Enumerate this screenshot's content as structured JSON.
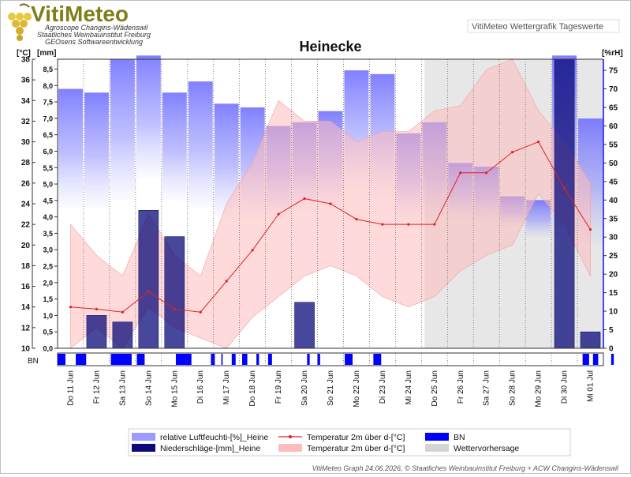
{
  "header": {
    "logo_title": "VitiMeteo",
    "logo_lines": [
      "Agroscope Changins-Wädenswil",
      "Staatliches Weinbauinstitut Freiburg",
      "GEOsens Softwareentwicklung"
    ],
    "top_right_label": "VitiMeteo Wettergrafik Tageswerte"
  },
  "footer": {
    "credit": "VitiMeteo Graph 24.06.2026, © Staatliches Weinbauinstitut Freiburg + ACW Changins-Wädenswil"
  },
  "colors": {
    "humidity": "#7070ff",
    "rain": "#0a0a7a",
    "temp_line": "#e02020",
    "temp_band": "#ffbcbc",
    "bn": "#0000ff",
    "forecast": "#d4d4d4"
  },
  "chart_data": {
    "type": "bar",
    "title": "Heinecke",
    "categories": [
      "Do 11 Jun",
      "Fr 12 Jun",
      "Sa 13 Jun",
      "So 14 Jun",
      "Mo 15 Jun",
      "Di 16 Jun",
      "Mi 17 Jun",
      "Do 18 Jun",
      "Fr 19 Jun",
      "Sa 20 Jun",
      "So 21 Jun",
      "Mo 22 Jun",
      "Di 23 Jun",
      "Mi 24 Jun",
      "Do 25 Jun",
      "Fr 26 Jun",
      "Sa 27 Jun",
      "So 28 Jun",
      "Mo 29 Jun",
      "Di 30 Jun",
      "Mi 01 Jul"
    ],
    "y_left_temp": {
      "label": "[°C]",
      "ticks": [
        10,
        12,
        14,
        16,
        18,
        20,
        22,
        24,
        26,
        28,
        30,
        32,
        34,
        36,
        38
      ],
      "range": [
        10,
        38
      ]
    },
    "y_left_rain": {
      "label": "[mm]",
      "ticks": [
        "0,0",
        "0,5",
        "1,0",
        "1,5",
        "2,0",
        "2,5",
        "3,0",
        "3,5",
        "4,0",
        "4,5",
        "5,0",
        "5,5",
        "6,0",
        "6,5",
        "7,0",
        "7,5",
        "8,0",
        "8,5"
      ],
      "range": [
        0,
        8.8
      ]
    },
    "y_right": {
      "label": "[%rH]",
      "ticks": [
        0,
        5,
        10,
        15,
        20,
        25,
        30,
        35,
        40,
        45,
        50,
        55,
        60,
        65,
        70,
        75
      ],
      "range": [
        0,
        78
      ]
    },
    "humidity_max": [
      70,
      69,
      78,
      79,
      69,
      72,
      66,
      65,
      60,
      61,
      64,
      75,
      74,
      58,
      61,
      50,
      49,
      41,
      40,
      79,
      62
    ],
    "humidity_min": [
      38,
      38,
      40,
      46,
      40,
      38,
      35,
      35,
      35,
      37,
      38,
      43,
      41,
      35,
      35,
      35,
      34,
      33,
      30,
      30,
      28
    ],
    "temp_max": [
      22.0,
      19.0,
      17.0,
      23.0,
      19.0,
      17.0,
      24.0,
      28.0,
      34.0,
      32.0,
      32.0,
      30.0,
      31.0,
      31.0,
      33.0,
      33.5,
      37.0,
      38.0,
      33.0,
      30.0,
      26.0
    ],
    "temp_mean": [
      14.0,
      13.8,
      13.5,
      15.5,
      13.8,
      13.5,
      16.5,
      19.5,
      23.0,
      24.5,
      24.0,
      22.5,
      22.0,
      22.0,
      22.0,
      27.0,
      27.0,
      29.0,
      30.0,
      25.5,
      21.5
    ],
    "temp_min": [
      10.0,
      12.0,
      10.0,
      14.0,
      12.0,
      11.0,
      10.0,
      13.0,
      15.0,
      17.0,
      18.0,
      17.0,
      15.0,
      14.0,
      15.0,
      17.5,
      19.0,
      20.0,
      25.0,
      22.0,
      17.0
    ],
    "rain_mm": [
      0.0,
      1.0,
      0.8,
      4.2,
      3.4,
      0.0,
      0.0,
      0.0,
      0.0,
      1.4,
      0.0,
      0.0,
      0.0,
      0.0,
      0.0,
      0.0,
      0.0,
      0.0,
      0.0,
      8.8,
      0.5
    ],
    "bn_segments": [
      [
        0,
        0.3
      ],
      [
        0.25,
        0.3
      ],
      [
        0.7,
        1.1
      ],
      [
        2.05,
        2.85
      ],
      [
        3.05,
        3.35
      ],
      [
        4.55,
        5.15
      ],
      [
        5.9,
        6.05
      ],
      [
        6.3,
        6.35
      ],
      [
        6.7,
        6.85
      ],
      [
        7.1,
        7.3
      ],
      [
        7.65,
        7.75
      ],
      [
        8.1,
        8.25
      ],
      [
        9.6,
        9.7
      ],
      [
        10.0,
        10.1
      ],
      [
        11.05,
        11.35
      ],
      [
        12.15,
        12.45
      ],
      [
        20.2,
        20.45
      ],
      [
        20.6,
        20.8
      ],
      [
        21.3,
        21.4
      ]
    ],
    "forecast_start_index": 14,
    "legend": [
      {
        "label": "relative Luftfeuchti-[%]_Heine",
        "kind": "humidity"
      },
      {
        "label": "Niederschläge-[mm]_Heine",
        "kind": "rain"
      },
      {
        "label": "Temperatur 2m über d-[°C]",
        "kind": "temp_line"
      },
      {
        "label": "Temperatur 2m über d-[°C]",
        "kind": "temp_band"
      },
      {
        "label": "BN",
        "kind": "bn"
      },
      {
        "label": "Wettervorhersage",
        "kind": "forecast"
      }
    ],
    "bn_axis_label": "BN",
    "legend_position": "bottom"
  }
}
